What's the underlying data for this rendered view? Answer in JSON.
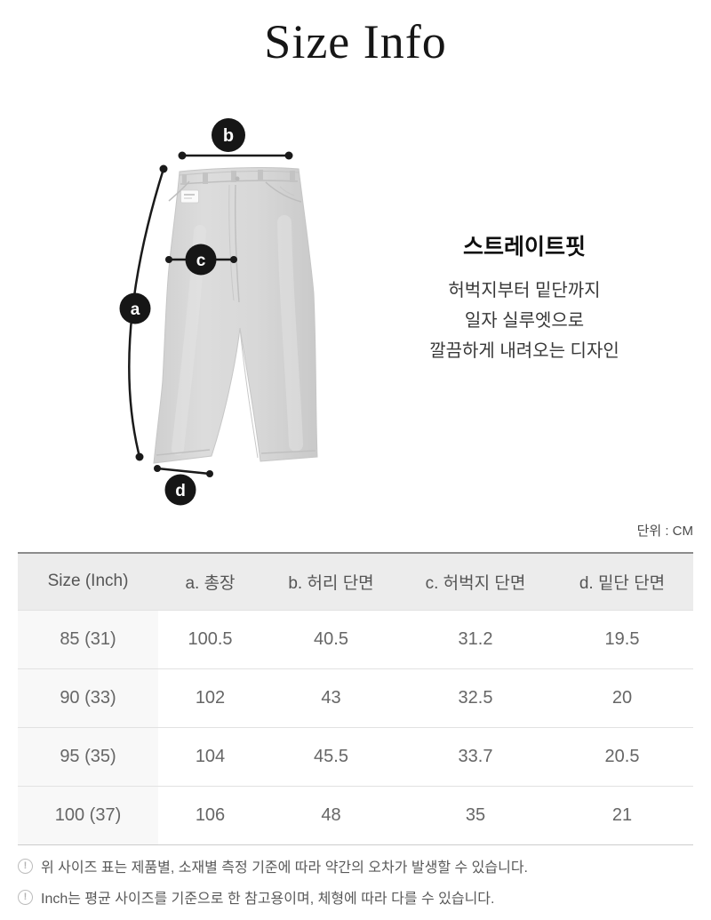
{
  "page": {
    "title": "Size Info",
    "unit_label": "단위 : CM"
  },
  "fit": {
    "headline": "스트레이트핏",
    "description_lines": [
      "허벅지부터 밑단까지",
      "일자 실루엣으로",
      "깔끔하게 내려오는 디자인"
    ]
  },
  "diagram": {
    "markers": [
      {
        "id": "a",
        "label": "a"
      },
      {
        "id": "b",
        "label": "b"
      },
      {
        "id": "c",
        "label": "c"
      },
      {
        "id": "d",
        "label": "d"
      }
    ]
  },
  "size_table": {
    "columns": [
      "Size (Inch)",
      "a. 총장",
      "b. 허리 단면",
      "c. 허벅지 단면",
      "d. 밑단 단면"
    ],
    "rows": [
      [
        "85 (31)",
        "100.5",
        "40.5",
        "31.2",
        "19.5"
      ],
      [
        "90 (33)",
        "102",
        "43",
        "32.5",
        "20"
      ],
      [
        "95 (35)",
        "104",
        "45.5",
        "33.7",
        "20.5"
      ],
      [
        "100 (37)",
        "106",
        "48",
        "35",
        "21"
      ]
    ]
  },
  "footnotes": [
    {
      "icon": "exclamation-circle-icon",
      "text": "위 사이즈 표는 제품별, 소재별 측정 기준에 따라 약간의 오차가 발생할 수 있습니다."
    },
    {
      "icon": "exclamation-circle-icon",
      "text": "Inch는 평균 사이즈를 기준으로 한 참고용이며, 체형에 따라 다를 수 있습니다."
    }
  ],
  "colors": {
    "marker_circle": "#161616",
    "denim": "#d6d6d6",
    "table_header_bg": "#ececec",
    "table_first_col_bg": "#f8f8f8",
    "table_top_border": "#8c8c8c",
    "text_primary": "#161616",
    "text_secondary": "#555555",
    "text_table": "#666666"
  }
}
